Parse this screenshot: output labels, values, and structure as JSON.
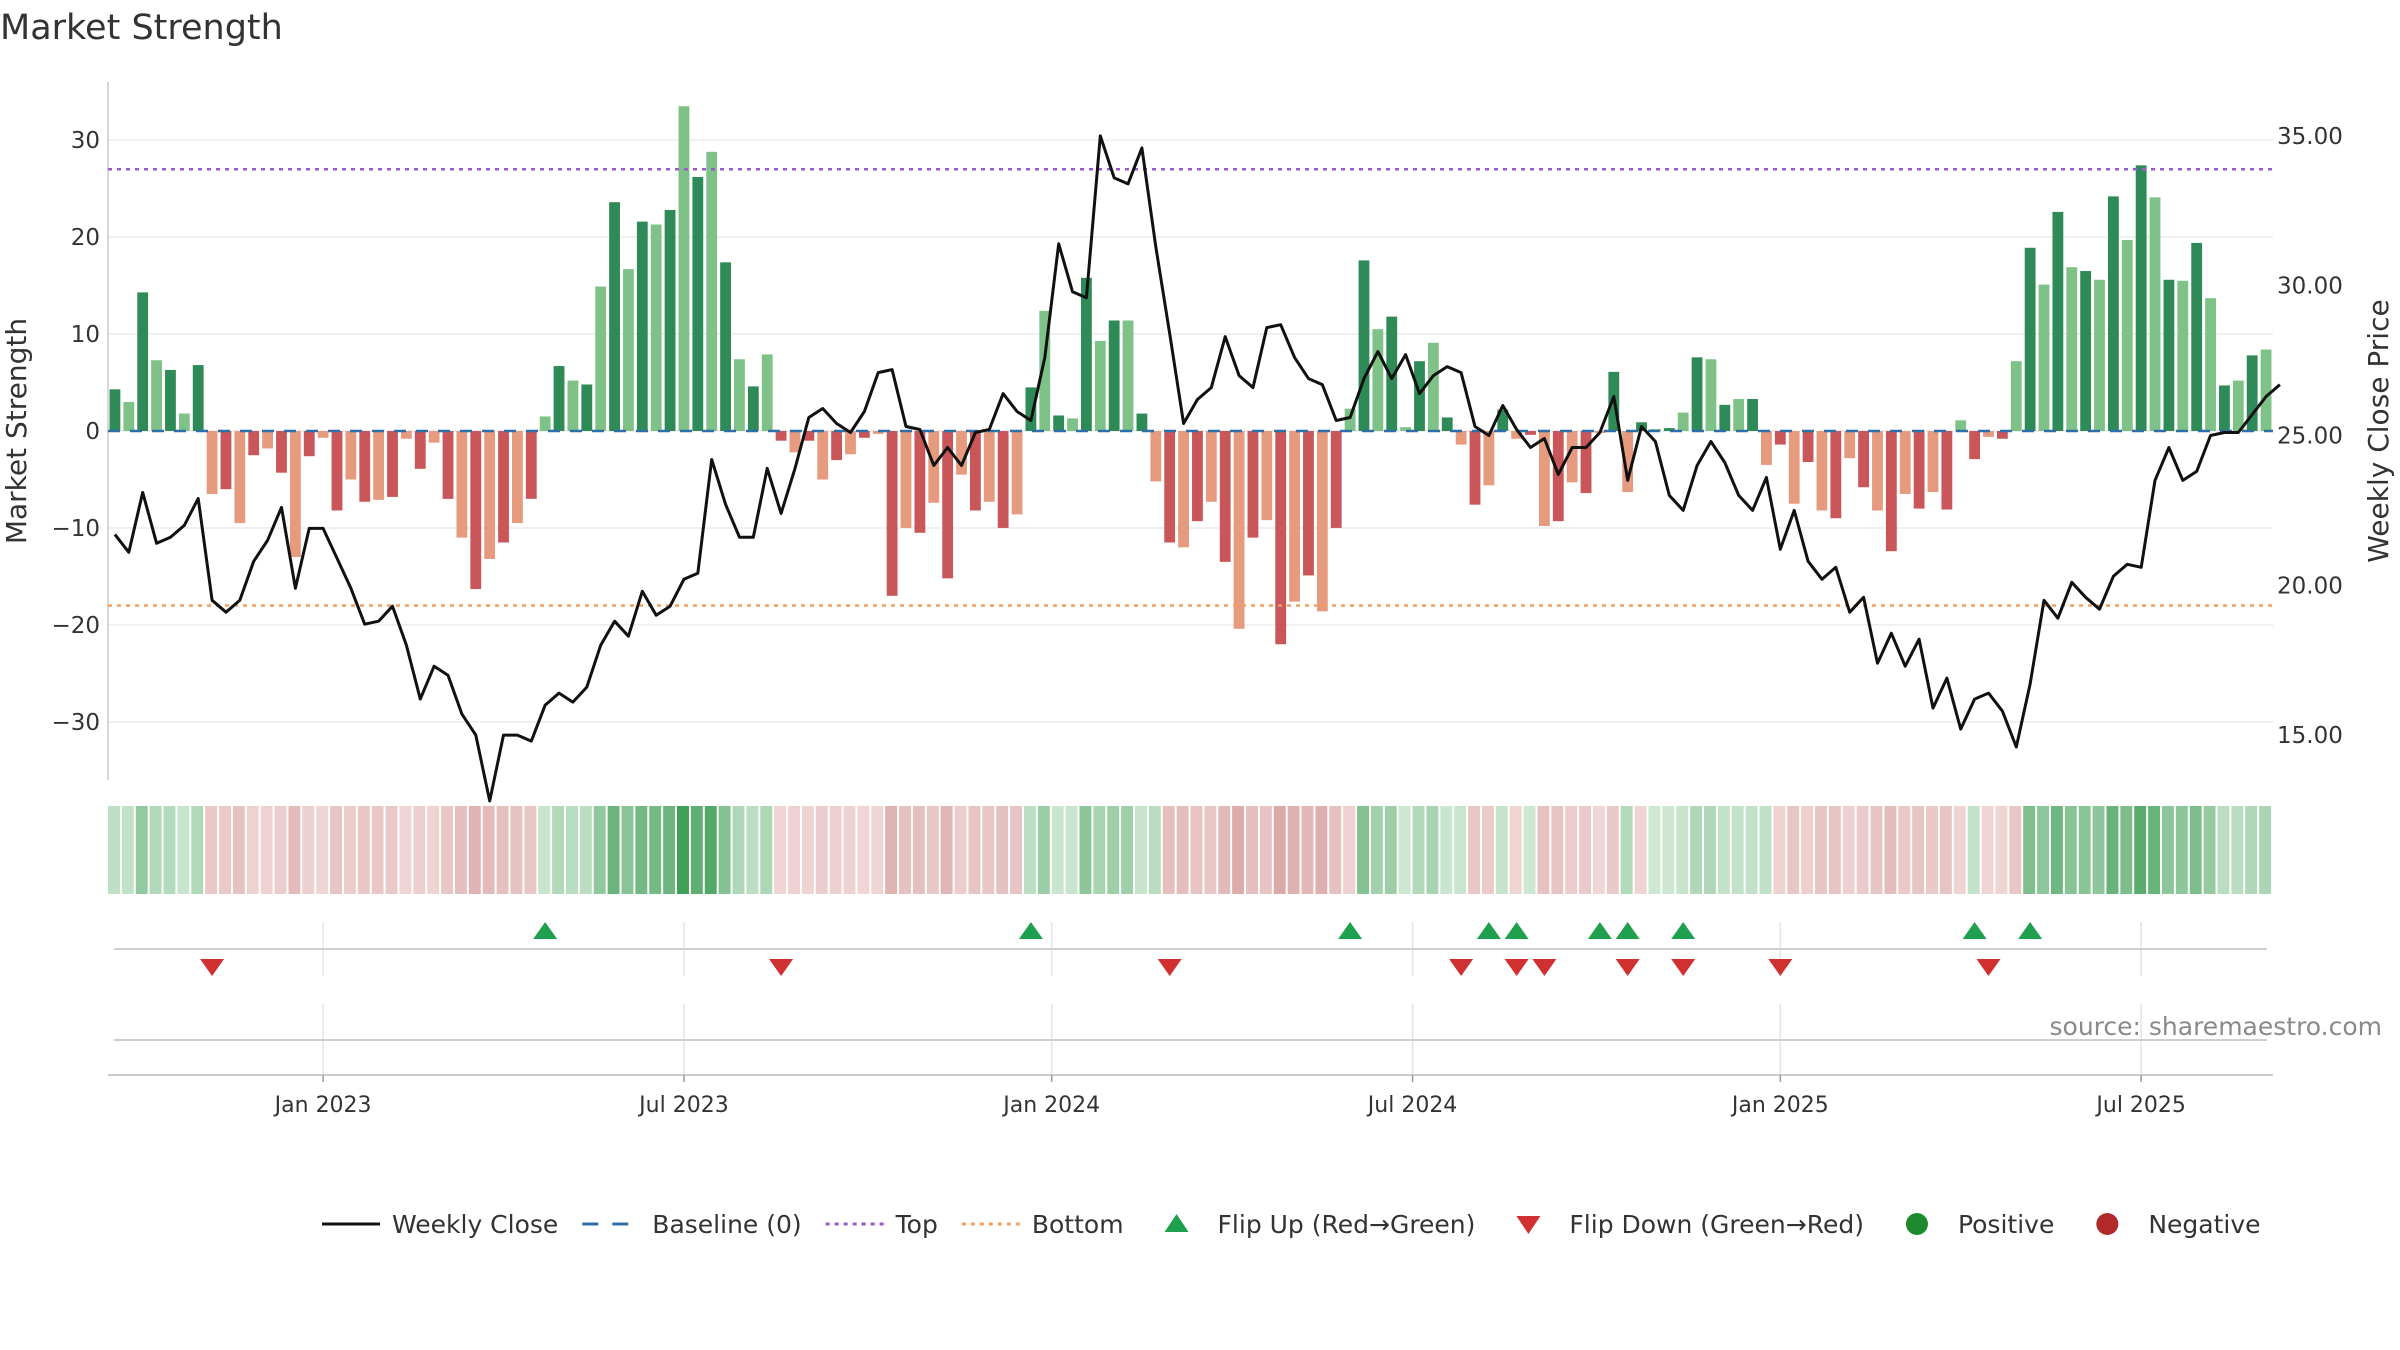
{
  "title": "Market Strength",
  "source_label": "source: sharemaestro.com",
  "colors": {
    "pos_strong": "#2e8b57",
    "pos_light": "#7fc287",
    "neg_strong": "#c9575a",
    "neg_light": "#e69a7e",
    "close": "#111111",
    "baseline": "#2f6fa8",
    "top": "#9b59d0",
    "bottom": "#f0a060",
    "flip_up": "#1fa04f",
    "flip_down": "#d03030",
    "positive": "#1e8a2e",
    "negative": "#b02a2a"
  },
  "legend": [
    {
      "key": "close",
      "label": "Weekly Close",
      "shape": "line"
    },
    {
      "key": "baseline",
      "label": "Baseline (0)",
      "shape": "dash"
    },
    {
      "key": "top",
      "label": "Top",
      "shape": "dot"
    },
    {
      "key": "bottom",
      "label": "Bottom",
      "shape": "dot"
    },
    {
      "key": "flip_up",
      "label": "Flip Up (Red→Green)",
      "shape": "tri-up"
    },
    {
      "key": "flip_down",
      "label": "Flip Down (Green→Red)",
      "shape": "tri-down"
    },
    {
      "key": "positive",
      "label": "Positive",
      "shape": "circle"
    },
    {
      "key": "negative",
      "label": "Negative",
      "shape": "circle"
    }
  ],
  "chart_data": {
    "type": "bar",
    "ylabel": "Market Strength",
    "y2label": "Weekly Close Price",
    "ylim": [
      -36,
      36
    ],
    "y2lim": [
      13.5,
      36.8
    ],
    "yticks": [
      30,
      20,
      10,
      0,
      -10,
      -20,
      -30
    ],
    "ytick_labels": [
      "30",
      "20",
      "10",
      "0",
      "−10",
      "−20",
      "−30"
    ],
    "y2ticks": [
      35,
      30,
      25,
      20,
      15
    ],
    "y2tick_labels": [
      "35.00",
      "30.00",
      "25.00",
      "20.00",
      "15.00"
    ],
    "xticks": [
      {
        "week": 15,
        "label": "Jan 2023"
      },
      {
        "week": 41,
        "label": "Jul 2023"
      },
      {
        "week": 67.5,
        "label": "Jan 2024"
      },
      {
        "week": 93.5,
        "label": "Jul 2024"
      },
      {
        "week": 120,
        "label": "Jan 2025"
      },
      {
        "week": 146,
        "label": "Jul 2025"
      }
    ],
    "start_week": "2022-09-26",
    "top": 27,
    "bottom": -18,
    "baseline": 0,
    "strength": [
      4.3,
      3,
      14.3,
      7.3,
      6.3,
      1.8,
      6.8,
      -6.5,
      -6,
      -9.5,
      -2.5,
      -1.8,
      -4.3,
      -13,
      -2.6,
      -0.7,
      -8.2,
      -5,
      -7.3,
      -7.1,
      -6.8,
      -0.8,
      -3.9,
      -1.2,
      -7,
      -11,
      -16.3,
      -13.2,
      -11.5,
      -9.5,
      -7,
      1.5,
      6.7,
      5.2,
      4.8,
      14.9,
      23.6,
      16.7,
      21.6,
      21.3,
      22.8,
      33.5,
      26.2,
      28.8,
      17.4,
      7.4,
      4.6,
      7.9,
      -1,
      -2.2,
      -1,
      -5,
      -3,
      -2.4,
      -0.7,
      -0.3,
      -17,
      -10,
      -10.5,
      -7.4,
      -15.2,
      -4.5,
      -8.2,
      -7.3,
      -10,
      -8.6,
      4.5,
      12.4,
      1.6,
      1.3,
      15.8,
      9.3,
      11.4,
      11.4,
      1.8,
      -5.2,
      -11.5,
      -12,
      -9.3,
      -7.3,
      -13.5,
      -20.4,
      -11,
      -9.2,
      -22,
      -17.6,
      -14.9,
      -18.6,
      -10,
      2.3,
      17.6,
      10.5,
      11.8,
      0.4,
      7.2,
      9.1,
      1.4,
      -1.4,
      -7.6,
      -5.6,
      2.2,
      -0.8,
      -0.4,
      -9.8,
      -9.3,
      -5.3,
      -6.4,
      -0.2,
      6.1,
      -6.3,
      0.9,
      0.2,
      0.3,
      1.9,
      7.6,
      7.4,
      2.7,
      3.3,
      3.3,
      -3.5,
      -1.4,
      -7.5,
      -3.2,
      -8.2,
      -9,
      -2.8,
      -5.8,
      -8.2,
      -12.4,
      -6.5,
      -8,
      -6.3,
      -8.1,
      1.1,
      -2.9,
      -0.6,
      -0.8,
      7.2,
      18.9,
      15.1,
      22.6,
      16.9,
      16.5,
      15.6,
      24.2,
      19.7,
      27.4,
      24.1,
      15.6,
      15.5,
      19.4,
      13.7,
      4.7,
      5.2,
      7.8,
      8.4
    ],
    "close": [
      21.7,
      21.1,
      23.1,
      21.4,
      21.6,
      22,
      22.9,
      19.5,
      19.1,
      19.5,
      20.8,
      21.5,
      22.6,
      19.9,
      21.9,
      21.9,
      20.9,
      19.9,
      18.7,
      18.8,
      19.3,
      18,
      16.2,
      17.3,
      17,
      15.7,
      15,
      12.8,
      15,
      15,
      14.8,
      16,
      16.4,
      16.1,
      16.6,
      18,
      18.8,
      18.3,
      19.8,
      19,
      19.3,
      20.2,
      20.4,
      24.2,
      22.7,
      21.6,
      21.6,
      23.9,
      22.4,
      23.9,
      25.6,
      25.9,
      25.4,
      25.1,
      25.8,
      27.1,
      27.2,
      25.3,
      25.2,
      24,
      24.6,
      24,
      25.1,
      25.2,
      26.4,
      25.8,
      25.5,
      27.6,
      31.4,
      29.8,
      29.6,
      35,
      33.6,
      33.4,
      34.6,
      31.3,
      28.4,
      25.4,
      26.2,
      26.6,
      28.3,
      27,
      26.6,
      28.6,
      28.7,
      27.6,
      26.9,
      26.7,
      25.5,
      25.6,
      26.9,
      27.8,
      26.9,
      27.7,
      26.4,
      27,
      27.3,
      27.1,
      25.3,
      25,
      26,
      25.2,
      24.6,
      24.9,
      23.7,
      24.6,
      24.6,
      25.1,
      26.3,
      23.5,
      25.3,
      24.8,
      23,
      22.5,
      24,
      24.8,
      24.1,
      23,
      22.5,
      23.6,
      21.2,
      22.5,
      20.8,
      20.2,
      20.6,
      19.1,
      19.6,
      17.4,
      18.4,
      17.3,
      18.2,
      15.9,
      16.9,
      15.2,
      16.2,
      16.4,
      15.8,
      14.6,
      16.7,
      19.5,
      18.9,
      20.1,
      19.6,
      19.2,
      20.3,
      20.7,
      20.6,
      23.5,
      24.6,
      23.5,
      23.8,
      25,
      25.1,
      25.1,
      25.7,
      26.3,
      26.7
    ],
    "regime": [
      1,
      1,
      1,
      1,
      1,
      1,
      1,
      -1,
      -1,
      -1,
      -1,
      -1,
      -1,
      -1,
      -1,
      -1,
      -1,
      -1,
      -1,
      -1,
      -1,
      -1,
      -1,
      -1,
      -1,
      -1,
      -1,
      -1,
      -1,
      -1,
      -1,
      1,
      1,
      1,
      1,
      1,
      1,
      1,
      1,
      1,
      1,
      1,
      1,
      1,
      1,
      1,
      1,
      1,
      -1,
      -1,
      -1,
      -1,
      -1,
      -1,
      -1,
      -1,
      -1,
      -1,
      -1,
      -1,
      -1,
      -1,
      -1,
      -1,
      -1,
      -1,
      1,
      1,
      1,
      1,
      1,
      1,
      1,
      1,
      1,
      1,
      -1,
      -1,
      -1,
      -1,
      -1,
      -1,
      -1,
      -1,
      -1,
      -1,
      -1,
      -1,
      -1,
      -1,
      1,
      1,
      1,
      1,
      1,
      1,
      1,
      1,
      -1,
      -1,
      1,
      -1,
      1,
      -1,
      -1,
      -1,
      -1,
      -1,
      -1,
      1,
      -1,
      1,
      1,
      1,
      1,
      1,
      1,
      1,
      1,
      1,
      -1,
      -1,
      -1,
      -1,
      -1,
      -1,
      -1,
      -1,
      -1,
      -1,
      -1,
      -1,
      -1,
      -1,
      1,
      -1,
      -1,
      -1,
      1,
      1,
      1,
      1,
      1,
      1,
      1,
      1,
      1,
      1,
      1,
      1,
      1,
      1,
      1,
      1,
      1,
      1,
      1
    ],
    "flip_up_weeks": [
      31,
      66,
      89,
      99,
      101,
      107,
      109,
      113,
      134,
      138
    ],
    "flip_down_weeks": [
      7,
      48,
      76,
      97,
      101,
      103,
      109,
      113,
      120,
      135
    ]
  }
}
